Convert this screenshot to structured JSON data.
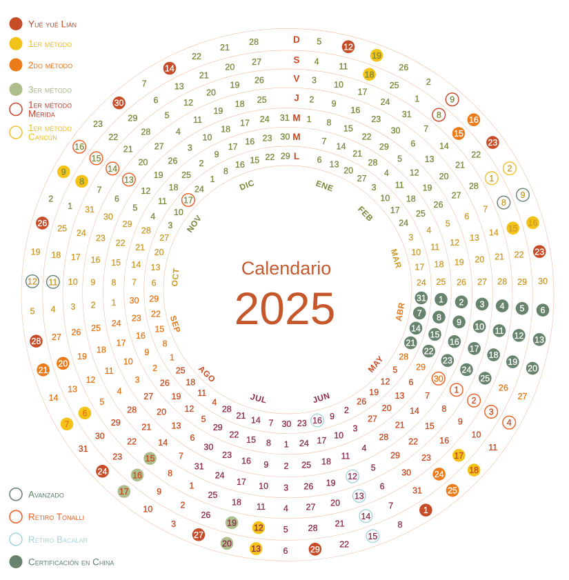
{
  "title": {
    "heading": "Calendario",
    "year": "2025",
    "heading_color": "#c45a2e",
    "year_color": "#c6572b"
  },
  "calendar": {
    "year": 2025,
    "weekday_labels_outer_to_inner": [
      "D",
      "S",
      "V",
      "J",
      "M",
      "M",
      "L"
    ],
    "weekday_label_color": "#c8491f",
    "ring_line_color": "#f2c6b4",
    "rings": "7 concentric rings, Monday innermost to Sunday outermost, week columns clockwise, gap at top for weekday labels",
    "quirk_duplicate_week": {
      "month": 12,
      "days_inner_to_outer": [
        16,
        17,
        18,
        19,
        20,
        21,
        22
      ],
      "position": "extra column between weeks Dec 8-14 and Dec 15-21"
    }
  },
  "months": [
    {
      "abbr": "ENE",
      "color": "#78893c"
    },
    {
      "abbr": "FEB",
      "color": "#78893c"
    },
    {
      "abbr": "MAR",
      "color": "#cc9b2d"
    },
    {
      "abbr": "ABR",
      "color": "#e5771b"
    },
    {
      "abbr": "MAY",
      "color": "#c64b22"
    },
    {
      "abbr": "JUN",
      "color": "#8e2b4b"
    },
    {
      "abbr": "JUL",
      "color": "#8e2b4b"
    },
    {
      "abbr": "AGO",
      "color": "#c64b22"
    },
    {
      "abbr": "SEP",
      "color": "#e5771b"
    },
    {
      "abbr": "OCT",
      "color": "#cc9b2d"
    },
    {
      "abbr": "NOV",
      "color": "#78893c"
    },
    {
      "abbr": "DIC",
      "color": "#78893c"
    }
  ],
  "event_types": {
    "yue": {
      "label": "Yué yué Lián",
      "style": "filled",
      "color": "#c64b27",
      "number_color": "white",
      "legend_text_color": "#bc4722"
    },
    "m1": {
      "label": "1er método",
      "style": "filled",
      "color": "#f3c319",
      "number_color": "month",
      "legend_text_color": "#edbd18"
    },
    "m2": {
      "label": "2do método",
      "style": "filled",
      "color": "#eb7a18",
      "number_color": "white",
      "legend_text_color": "#e8721a"
    },
    "m3": {
      "label": "3er método",
      "style": "filled",
      "color": "#adbd8c",
      "number_color": "month",
      "legend_text_color": "#a9ba88"
    },
    "merida": {
      "label": "1er método Mérida",
      "label_lines": [
        "1er método",
        "Mérida"
      ],
      "style": "outlined",
      "color": "#cd4a30",
      "number_color": "month",
      "legend_text_color": "#c5402e"
    },
    "cancun": {
      "label": "1er método Cancún",
      "label_lines": [
        "1er método",
        "Cancún"
      ],
      "style": "outlined",
      "color": "#f1c232",
      "number_color": "month",
      "legend_text_color": "#eebd1b"
    },
    "avanzado": {
      "label": "Avanzado",
      "style": "outlined",
      "color": "#6c8476",
      "number_color": "month",
      "legend_text_color": "#5d7c68"
    },
    "tonalli": {
      "label": "Retiro Tonalli",
      "style": "outlined",
      "color": "#ee6227",
      "number_color": "month",
      "legend_text_color": "#ec6124"
    },
    "bacalar": {
      "label": "Retiro Bacalar",
      "style": "outlined",
      "color": "#a9d6da",
      "number_color": "month",
      "legend_text_color": "#a7d4d8"
    },
    "china": {
      "label": "Certificación en China",
      "style": "filled",
      "color": "#67836e",
      "number_color": "white",
      "legend_text_color": "#5d7c68"
    }
  },
  "legend_top_keys": [
    "yue",
    "m1",
    "m2",
    "m3",
    "merida",
    "cancun"
  ],
  "legend_bottom_keys": [
    "avanzado",
    "tonalli",
    "bacalar",
    "china"
  ],
  "events": [
    {
      "m": 1,
      "d": 12,
      "t": "yue"
    },
    {
      "m": 1,
      "d": 18,
      "t": "m1"
    },
    {
      "m": 1,
      "d": 19,
      "t": "m1"
    },
    {
      "m": 2,
      "d": 8,
      "t": "merida"
    },
    {
      "m": 2,
      "d": 9,
      "t": "merida"
    },
    {
      "m": 2,
      "d": 15,
      "t": "m2"
    },
    {
      "m": 2,
      "d": 16,
      "t": "m2"
    },
    {
      "m": 2,
      "d": 23,
      "t": "yue"
    },
    {
      "m": 3,
      "d": 1,
      "t": "cancun"
    },
    {
      "m": 3,
      "d": 2,
      "t": "cancun"
    },
    {
      "m": 3,
      "d": 8,
      "t": "avanzado"
    },
    {
      "m": 3,
      "d": 9,
      "t": "avanzado"
    },
    {
      "m": 3,
      "d": 15,
      "t": "m1"
    },
    {
      "m": 3,
      "d": 16,
      "t": "m1"
    },
    {
      "m": 3,
      "d": 23,
      "t": "yue"
    },
    {
      "m": 3,
      "d": 31,
      "t": "china"
    },
    {
      "m": 4,
      "d": 1,
      "t": "china"
    },
    {
      "m": 4,
      "d": 2,
      "t": "china"
    },
    {
      "m": 4,
      "d": 3,
      "t": "china"
    },
    {
      "m": 4,
      "d": 4,
      "t": "china"
    },
    {
      "m": 4,
      "d": 5,
      "t": "china"
    },
    {
      "m": 4,
      "d": 6,
      "t": "china"
    },
    {
      "m": 4,
      "d": 7,
      "t": "china"
    },
    {
      "m": 4,
      "d": 8,
      "t": "china"
    },
    {
      "m": 4,
      "d": 9,
      "t": "china"
    },
    {
      "m": 4,
      "d": 10,
      "t": "china"
    },
    {
      "m": 4,
      "d": 11,
      "t": "china"
    },
    {
      "m": 4,
      "d": 12,
      "t": "china"
    },
    {
      "m": 4,
      "d": 13,
      "t": "china"
    },
    {
      "m": 4,
      "d": 14,
      "t": "china"
    },
    {
      "m": 4,
      "d": 15,
      "t": "china"
    },
    {
      "m": 4,
      "d": 16,
      "t": "china"
    },
    {
      "m": 4,
      "d": 17,
      "t": "china"
    },
    {
      "m": 4,
      "d": 18,
      "t": "china"
    },
    {
      "m": 4,
      "d": 19,
      "t": "china"
    },
    {
      "m": 4,
      "d": 20,
      "t": "china"
    },
    {
      "m": 4,
      "d": 21,
      "t": "china"
    },
    {
      "m": 4,
      "d": 22,
      "t": "china"
    },
    {
      "m": 4,
      "d": 23,
      "t": "china"
    },
    {
      "m": 4,
      "d": 24,
      "t": "china"
    },
    {
      "m": 4,
      "d": 25,
      "t": "china"
    },
    {
      "m": 4,
      "d": 30,
      "t": "tonalli"
    },
    {
      "m": 5,
      "d": 1,
      "t": "tonalli"
    },
    {
      "m": 5,
      "d": 2,
      "t": "tonalli"
    },
    {
      "m": 5,
      "d": 3,
      "t": "tonalli"
    },
    {
      "m": 5,
      "d": 4,
      "t": "tonalli"
    },
    {
      "m": 5,
      "d": 17,
      "t": "m1"
    },
    {
      "m": 5,
      "d": 18,
      "t": "m1"
    },
    {
      "m": 5,
      "d": 24,
      "t": "m2"
    },
    {
      "m": 5,
      "d": 25,
      "t": "m2"
    },
    {
      "m": 6,
      "d": 1,
      "t": "yue"
    },
    {
      "m": 6,
      "d": 12,
      "t": "bacalar"
    },
    {
      "m": 6,
      "d": 13,
      "t": "bacalar"
    },
    {
      "m": 6,
      "d": 14,
      "t": "bacalar"
    },
    {
      "m": 6,
      "d": 15,
      "t": "bacalar"
    },
    {
      "m": 6,
      "d": 16,
      "t": "bacalar"
    },
    {
      "m": 6,
      "d": 29,
      "t": "yue"
    },
    {
      "m": 7,
      "d": 12,
      "t": "m1"
    },
    {
      "m": 7,
      "d": 13,
      "t": "m1"
    },
    {
      "m": 7,
      "d": 19,
      "t": "m3"
    },
    {
      "m": 7,
      "d": 20,
      "t": "m3"
    },
    {
      "m": 7,
      "d": 27,
      "t": "yue"
    },
    {
      "m": 8,
      "d": 15,
      "t": "m3"
    },
    {
      "m": 8,
      "d": 16,
      "t": "m3"
    },
    {
      "m": 8,
      "d": 17,
      "t": "m3"
    },
    {
      "m": 8,
      "d": 24,
      "t": "yue"
    },
    {
      "m": 9,
      "d": 6,
      "t": "m1"
    },
    {
      "m": 9,
      "d": 7,
      "t": "m1"
    },
    {
      "m": 9,
      "d": 20,
      "t": "m2"
    },
    {
      "m": 9,
      "d": 21,
      "t": "m2"
    },
    {
      "m": 9,
      "d": 28,
      "t": "yue"
    },
    {
      "m": 10,
      "d": 11,
      "t": "avanzado"
    },
    {
      "m": 10,
      "d": 12,
      "t": "avanzado"
    },
    {
      "m": 10,
      "d": 26,
      "t": "yue"
    },
    {
      "m": 11,
      "d": 8,
      "t": "m1"
    },
    {
      "m": 11,
      "d": 9,
      "t": "m1"
    },
    {
      "m": 11,
      "d": 13,
      "t": "tonalli"
    },
    {
      "m": 11,
      "d": 14,
      "t": "tonalli"
    },
    {
      "m": 11,
      "d": 15,
      "t": "tonalli"
    },
    {
      "m": 11,
      "d": 16,
      "t": "tonalli"
    },
    {
      "m": 11,
      "d": 17,
      "t": "tonalli"
    },
    {
      "m": 11,
      "d": 30,
      "t": "yue"
    },
    {
      "m": 12,
      "d": 14,
      "t": "yue"
    }
  ]
}
